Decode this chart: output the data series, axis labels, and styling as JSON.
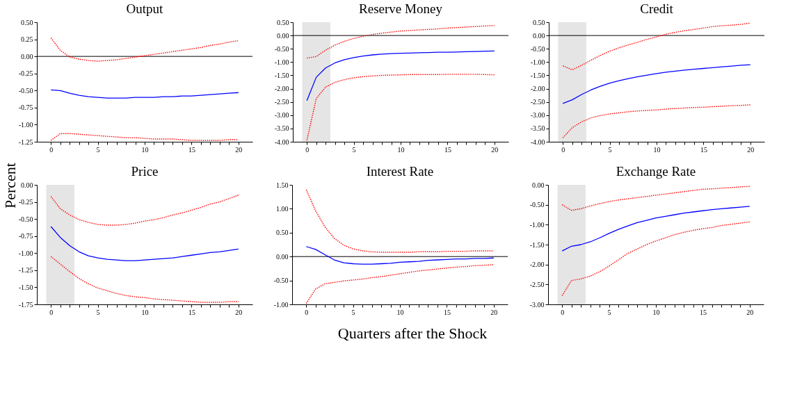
{
  "chart_data": [
    {
      "type": "line",
      "title": "Output",
      "ylabel": "Percent",
      "x": [
        0,
        1,
        2,
        3,
        4,
        5,
        6,
        7,
        8,
        9,
        10,
        11,
        12,
        13,
        14,
        15,
        16,
        17,
        18,
        19,
        20
      ],
      "xlim": [
        -1.5,
        21.5
      ],
      "xticks": [
        0,
        {
          "value": 1,
          "label": null
        },
        {
          "value": 2,
          "label": null
        },
        {
          "value": 3,
          "label": null
        },
        {
          "value": 4,
          "label": null
        },
        5,
        {
          "value": 6,
          "label": null
        },
        {
          "value": 7,
          "label": null
        },
        {
          "value": 8,
          "label": null
        },
        {
          "value": 9,
          "label": null
        },
        10,
        {
          "value": 11,
          "label": null
        },
        {
          "value": 12,
          "label": null
        },
        {
          "value": 13,
          "label": null
        },
        {
          "value": 14,
          "label": null
        },
        15,
        {
          "value": 16,
          "label": null
        },
        {
          "value": 17,
          "label": null
        },
        {
          "value": 18,
          "label": null
        },
        {
          "value": 19,
          "label": null
        },
        20
      ],
      "ylim": [
        -1.25,
        0.5
      ],
      "yticks": [
        {
          "value": -1.25,
          "label": "-1.25"
        },
        {
          "value": -1,
          "label": "-1.00"
        },
        {
          "value": -0.75,
          "label": "-0.75"
        },
        {
          "value": -0.5,
          "label": "-0.50"
        },
        {
          "value": -0.25,
          "label": "-0.25"
        },
        {
          "value": 0,
          "label": "0.00"
        },
        {
          "value": 0.25,
          "label": "0.25"
        },
        {
          "value": 0.5,
          "label": "0.50"
        }
      ],
      "grid": false,
      "marker": "none",
      "ref_lines": [
        {
          "axis": "y",
          "value": 0,
          "color": "#000000"
        }
      ],
      "series": [
        {
          "color": "#0000ff",
          "line_style": "solid",
          "values": [
            -0.49,
            -0.5,
            -0.54,
            -0.57,
            -0.59,
            -0.6,
            -0.61,
            -0.61,
            -0.61,
            -0.6,
            -0.6,
            -0.6,
            -0.59,
            -0.59,
            -0.58,
            -0.58,
            -0.57,
            -0.56,
            -0.55,
            -0.54,
            -0.53
          ]
        },
        {
          "color": "#ff0000",
          "line_style": "dotted",
          "values": [
            0.27,
            0.09,
            -0.01,
            -0.04,
            -0.06,
            -0.07,
            -0.06,
            -0.05,
            -0.03,
            -0.01,
            0.01,
            0.03,
            0.05,
            0.07,
            0.09,
            0.11,
            0.13,
            0.16,
            0.18,
            0.21,
            0.23
          ]
        },
        {
          "color": "#ff0000",
          "line_style": "dotted",
          "values": [
            -1.23,
            -1.13,
            -1.13,
            -1.14,
            -1.15,
            -1.16,
            -1.17,
            -1.18,
            -1.19,
            -1.19,
            -1.2,
            -1.21,
            -1.21,
            -1.21,
            -1.22,
            -1.23,
            -1.23,
            -1.23,
            -1.23,
            -1.22,
            -1.22
          ]
        }
      ]
    },
    {
      "type": "line",
      "title": "Reserve Money",
      "x": [
        0,
        1,
        2,
        3,
        4,
        5,
        6,
        7,
        8,
        9,
        10,
        11,
        12,
        13,
        14,
        15,
        16,
        17,
        18,
        19,
        20
      ],
      "xlim": [
        -1.5,
        21.5
      ],
      "xticks": [
        0,
        {
          "value": 1,
          "label": null
        },
        {
          "value": 2,
          "label": null
        },
        {
          "value": 3,
          "label": null
        },
        {
          "value": 4,
          "label": null
        },
        5,
        {
          "value": 6,
          "label": null
        },
        {
          "value": 7,
          "label": null
        },
        {
          "value": 8,
          "label": null
        },
        {
          "value": 9,
          "label": null
        },
        10,
        {
          "value": 11,
          "label": null
        },
        {
          "value": 12,
          "label": null
        },
        {
          "value": 13,
          "label": null
        },
        {
          "value": 14,
          "label": null
        },
        15,
        {
          "value": 16,
          "label": null
        },
        {
          "value": 17,
          "label": null
        },
        {
          "value": 18,
          "label": null
        },
        {
          "value": 19,
          "label": null
        },
        20
      ],
      "ylim": [
        -4,
        0.5
      ],
      "yticks": [
        {
          "value": -4,
          "label": "-4.00"
        },
        {
          "value": -3.5,
          "label": "-3.50"
        },
        {
          "value": -3,
          "label": "-3.00"
        },
        {
          "value": -2.5,
          "label": "-2.50"
        },
        {
          "value": -2,
          "label": "-2.00"
        },
        {
          "value": -1.5,
          "label": "-1.50"
        },
        {
          "value": -1,
          "label": "-1.00"
        },
        {
          "value": -0.5,
          "label": "-0.50"
        },
        {
          "value": 0,
          "label": "0.00"
        },
        {
          "value": 0.5,
          "label": "0.50"
        }
      ],
      "grid": false,
      "marker": "none",
      "bands": [
        {
          "axis": "x",
          "from": -0.5,
          "to": 2.5,
          "color": "#e5e5e5"
        }
      ],
      "ref_lines": [
        {
          "axis": "y",
          "value": 0,
          "color": "#000000"
        }
      ],
      "series": [
        {
          "color": "#0000ff",
          "line_style": "solid",
          "values": [
            -2.45,
            -1.57,
            -1.22,
            -1.03,
            -0.91,
            -0.83,
            -0.77,
            -0.73,
            -0.7,
            -0.68,
            -0.67,
            -0.66,
            -0.65,
            -0.64,
            -0.63,
            -0.63,
            -0.62,
            -0.61,
            -0.6,
            -0.59,
            -0.58
          ]
        },
        {
          "color": "#ff0000",
          "line_style": "dotted",
          "values": [
            -0.85,
            -0.79,
            -0.55,
            -0.36,
            -0.22,
            -0.11,
            -0.03,
            0.04,
            0.09,
            0.13,
            0.17,
            0.19,
            0.21,
            0.23,
            0.25,
            0.28,
            0.3,
            0.32,
            0.34,
            0.36,
            0.38
          ]
        },
        {
          "color": "#ff0000",
          "line_style": "dotted",
          "values": [
            -3.95,
            -2.37,
            -1.94,
            -1.76,
            -1.66,
            -1.59,
            -1.55,
            -1.52,
            -1.5,
            -1.49,
            -1.48,
            -1.47,
            -1.47,
            -1.47,
            -1.47,
            -1.46,
            -1.46,
            -1.46,
            -1.46,
            -1.47,
            -1.48
          ]
        }
      ]
    },
    {
      "type": "line",
      "title": "Credit",
      "x": [
        0,
        1,
        2,
        3,
        4,
        5,
        6,
        7,
        8,
        9,
        10,
        11,
        12,
        13,
        14,
        15,
        16,
        17,
        18,
        19,
        20
      ],
      "xlim": [
        -1.5,
        21.5
      ],
      "xticks": [
        0,
        {
          "value": 1,
          "label": null
        },
        {
          "value": 2,
          "label": null
        },
        {
          "value": 3,
          "label": null
        },
        {
          "value": 4,
          "label": null
        },
        5,
        {
          "value": 6,
          "label": null
        },
        {
          "value": 7,
          "label": null
        },
        {
          "value": 8,
          "label": null
        },
        {
          "value": 9,
          "label": null
        },
        10,
        {
          "value": 11,
          "label": null
        },
        {
          "value": 12,
          "label": null
        },
        {
          "value": 13,
          "label": null
        },
        {
          "value": 14,
          "label": null
        },
        15,
        {
          "value": 16,
          "label": null
        },
        {
          "value": 17,
          "label": null
        },
        {
          "value": 18,
          "label": null
        },
        {
          "value": 19,
          "label": null
        },
        20
      ],
      "ylim": [
        -4,
        0.5
      ],
      "yticks": [
        {
          "value": -4,
          "label": "-4.00"
        },
        {
          "value": -3.5,
          "label": "-3.50"
        },
        {
          "value": -3,
          "label": "-3.00"
        },
        {
          "value": -2.5,
          "label": "-2.50"
        },
        {
          "value": -2,
          "label": "-2.00"
        },
        {
          "value": -1.5,
          "label": "-1.50"
        },
        {
          "value": -1,
          "label": "-1.00"
        },
        {
          "value": -0.5,
          "label": "-0.50"
        },
        {
          "value": 0,
          "label": "0.00"
        },
        {
          "value": 0.5,
          "label": "0.50"
        }
      ],
      "grid": false,
      "marker": "none",
      "bands": [
        {
          "axis": "x",
          "from": -0.5,
          "to": 2.5,
          "color": "#e5e5e5"
        }
      ],
      "ref_lines": [
        {
          "axis": "y",
          "value": 0,
          "color": "#000000"
        }
      ],
      "series": [
        {
          "color": "#0000ff",
          "line_style": "solid",
          "values": [
            -2.56,
            -2.42,
            -2.22,
            -2.05,
            -1.91,
            -1.79,
            -1.7,
            -1.62,
            -1.55,
            -1.49,
            -1.43,
            -1.38,
            -1.34,
            -1.3,
            -1.27,
            -1.24,
            -1.21,
            -1.18,
            -1.15,
            -1.12,
            -1.1
          ]
        },
        {
          "color": "#ff0000",
          "line_style": "dotted",
          "values": [
            -1.14,
            -1.29,
            -1.12,
            -0.93,
            -0.75,
            -0.59,
            -0.46,
            -0.35,
            -0.25,
            -0.14,
            -0.05,
            0.05,
            0.12,
            0.18,
            0.23,
            0.28,
            0.34,
            0.37,
            0.39,
            0.42,
            0.47
          ]
        },
        {
          "color": "#ff0000",
          "line_style": "dotted",
          "values": [
            -3.85,
            -3.47,
            -3.25,
            -3.1,
            -3.01,
            -2.95,
            -2.91,
            -2.87,
            -2.84,
            -2.82,
            -2.8,
            -2.77,
            -2.75,
            -2.73,
            -2.71,
            -2.7,
            -2.68,
            -2.66,
            -2.64,
            -2.63,
            -2.61
          ]
        }
      ]
    },
    {
      "type": "line",
      "title": "Price",
      "x": [
        0,
        1,
        2,
        3,
        4,
        5,
        6,
        7,
        8,
        9,
        10,
        11,
        12,
        13,
        14,
        15,
        16,
        17,
        18,
        19,
        20
      ],
      "xlim": [
        -1.5,
        21.5
      ],
      "xticks": [
        0,
        {
          "value": 1,
          "label": null
        },
        {
          "value": 2,
          "label": null
        },
        {
          "value": 3,
          "label": null
        },
        {
          "value": 4,
          "label": null
        },
        5,
        {
          "value": 6,
          "label": null
        },
        {
          "value": 7,
          "label": null
        },
        {
          "value": 8,
          "label": null
        },
        {
          "value": 9,
          "label": null
        },
        10,
        {
          "value": 11,
          "label": null
        },
        {
          "value": 12,
          "label": null
        },
        {
          "value": 13,
          "label": null
        },
        {
          "value": 14,
          "label": null
        },
        15,
        {
          "value": 16,
          "label": null
        },
        {
          "value": 17,
          "label": null
        },
        {
          "value": 18,
          "label": null
        },
        {
          "value": 19,
          "label": null
        },
        20
      ],
      "ylim": [
        -1.75,
        0
      ],
      "yticks": [
        {
          "value": -1.75,
          "label": "-1.75"
        },
        {
          "value": -1.5,
          "label": "-1.50"
        },
        {
          "value": -1.25,
          "label": "-1.25"
        },
        {
          "value": -1,
          "label": "-1.00"
        },
        {
          "value": -0.75,
          "label": "-0.75"
        },
        {
          "value": -0.5,
          "label": "-0.50"
        },
        {
          "value": -0.25,
          "label": "-0.25"
        },
        {
          "value": 0,
          "label": "0.00"
        }
      ],
      "grid": false,
      "marker": "none",
      "bands": [
        {
          "axis": "x",
          "from": -0.5,
          "to": 2.5,
          "color": "#e5e5e5"
        }
      ],
      "series": [
        {
          "color": "#0000ff",
          "line_style": "solid",
          "values": [
            -0.61,
            -0.77,
            -0.89,
            -0.98,
            -1.04,
            -1.07,
            -1.09,
            -1.1,
            -1.11,
            -1.11,
            -1.1,
            -1.09,
            -1.08,
            -1.07,
            -1.05,
            -1.03,
            -1.01,
            -0.99,
            -0.98,
            -0.96,
            -0.94
          ]
        },
        {
          "color": "#ff0000",
          "line_style": "dotted",
          "values": [
            -0.17,
            -0.35,
            -0.44,
            -0.51,
            -0.55,
            -0.58,
            -0.59,
            -0.59,
            -0.58,
            -0.56,
            -0.53,
            -0.51,
            -0.48,
            -0.44,
            -0.41,
            -0.37,
            -0.33,
            -0.28,
            -0.25,
            -0.2,
            -0.15
          ]
        },
        {
          "color": "#ff0000",
          "line_style": "dotted",
          "values": [
            -1.05,
            -1.16,
            -1.27,
            -1.37,
            -1.45,
            -1.51,
            -1.55,
            -1.59,
            -1.62,
            -1.64,
            -1.65,
            -1.67,
            -1.68,
            -1.69,
            -1.7,
            -1.71,
            -1.72,
            -1.72,
            -1.72,
            -1.71,
            -1.71
          ]
        }
      ]
    },
    {
      "type": "line",
      "title": "Interest Rate",
      "xlabel": "Quarters after the Shock",
      "x": [
        0,
        1,
        2,
        3,
        4,
        5,
        6,
        7,
        8,
        9,
        10,
        11,
        12,
        13,
        14,
        15,
        16,
        17,
        18,
        19,
        20
      ],
      "xlim": [
        -1.5,
        21.5
      ],
      "xticks": [
        0,
        {
          "value": 1,
          "label": null
        },
        {
          "value": 2,
          "label": null
        },
        {
          "value": 3,
          "label": null
        },
        {
          "value": 4,
          "label": null
        },
        5,
        {
          "value": 6,
          "label": null
        },
        {
          "value": 7,
          "label": null
        },
        {
          "value": 8,
          "label": null
        },
        {
          "value": 9,
          "label": null
        },
        10,
        {
          "value": 11,
          "label": null
        },
        {
          "value": 12,
          "label": null
        },
        {
          "value": 13,
          "label": null
        },
        {
          "value": 14,
          "label": null
        },
        15,
        {
          "value": 16,
          "label": null
        },
        {
          "value": 17,
          "label": null
        },
        {
          "value": 18,
          "label": null
        },
        {
          "value": 19,
          "label": null
        },
        20
      ],
      "ylim": [
        -1,
        1.5
      ],
      "yticks": [
        {
          "value": -1,
          "label": "-1.00"
        },
        {
          "value": -0.5,
          "label": "-0.50"
        },
        {
          "value": 0,
          "label": "0.00"
        },
        {
          "value": 0.5,
          "label": "0.50"
        },
        {
          "value": 1,
          "label": "1.00"
        },
        {
          "value": 1.5,
          "label": "1.50"
        }
      ],
      "grid": false,
      "marker": "none",
      "ref_lines": [
        {
          "axis": "y",
          "value": 0,
          "color": "#000000"
        }
      ],
      "series": [
        {
          "color": "#0000ff",
          "line_style": "solid",
          "values": [
            0.21,
            0.15,
            0.04,
            -0.07,
            -0.13,
            -0.15,
            -0.16,
            -0.16,
            -0.15,
            -0.14,
            -0.12,
            -0.11,
            -0.1,
            -0.08,
            -0.07,
            -0.06,
            -0.05,
            -0.05,
            -0.04,
            -0.04,
            -0.03
          ]
        },
        {
          "color": "#ff0000",
          "line_style": "dotted",
          "values": [
            1.4,
            0.96,
            0.62,
            0.38,
            0.24,
            0.16,
            0.12,
            0.1,
            0.09,
            0.09,
            0.09,
            0.09,
            0.1,
            0.1,
            0.1,
            0.11,
            0.11,
            0.11,
            0.12,
            0.12,
            0.12
          ]
        },
        {
          "color": "#ff0000",
          "line_style": "dotted",
          "values": [
            -0.98,
            -0.68,
            -0.57,
            -0.54,
            -0.51,
            -0.49,
            -0.47,
            -0.44,
            -0.42,
            -0.39,
            -0.36,
            -0.33,
            -0.3,
            -0.28,
            -0.26,
            -0.24,
            -0.22,
            -0.21,
            -0.19,
            -0.18,
            -0.17
          ]
        }
      ]
    },
    {
      "type": "line",
      "title": "Exchange Rate",
      "x": [
        0,
        1,
        2,
        3,
        4,
        5,
        6,
        7,
        8,
        9,
        10,
        11,
        12,
        13,
        14,
        15,
        16,
        17,
        18,
        19,
        20
      ],
      "xlim": [
        -1.5,
        21.5
      ],
      "xticks": [
        0,
        {
          "value": 1,
          "label": null
        },
        {
          "value": 2,
          "label": null
        },
        {
          "value": 3,
          "label": null
        },
        {
          "value": 4,
          "label": null
        },
        5,
        {
          "value": 6,
          "label": null
        },
        {
          "value": 7,
          "label": null
        },
        {
          "value": 8,
          "label": null
        },
        {
          "value": 9,
          "label": null
        },
        10,
        {
          "value": 11,
          "label": null
        },
        {
          "value": 12,
          "label": null
        },
        {
          "value": 13,
          "label": null
        },
        {
          "value": 14,
          "label": null
        },
        15,
        {
          "value": 16,
          "label": null
        },
        {
          "value": 17,
          "label": null
        },
        {
          "value": 18,
          "label": null
        },
        {
          "value": 19,
          "label": null
        },
        20
      ],
      "ylim": [
        -3,
        0
      ],
      "yticks": [
        {
          "value": -3,
          "label": "-3.00"
        },
        {
          "value": -2.5,
          "label": "-2.50"
        },
        {
          "value": -2,
          "label": "-2.00"
        },
        {
          "value": -1.5,
          "label": "-1.50"
        },
        {
          "value": -1,
          "label": "-1.00"
        },
        {
          "value": -0.5,
          "label": "-0.50"
        },
        {
          "value": 0,
          "label": "0.00"
        }
      ],
      "grid": false,
      "marker": "none",
      "bands": [
        {
          "axis": "x",
          "from": -0.5,
          "to": 2.5,
          "color": "#e5e5e5"
        }
      ],
      "series": [
        {
          "color": "#0000ff",
          "line_style": "solid",
          "values": [
            -1.66,
            -1.54,
            -1.5,
            -1.43,
            -1.33,
            -1.22,
            -1.12,
            -1.03,
            -0.95,
            -0.89,
            -0.83,
            -0.79,
            -0.75,
            -0.71,
            -0.68,
            -0.65,
            -0.62,
            -0.6,
            -0.58,
            -0.56,
            -0.54
          ]
        },
        {
          "color": "#ff0000",
          "line_style": "dotted",
          "values": [
            -0.5,
            -0.64,
            -0.6,
            -0.53,
            -0.47,
            -0.42,
            -0.38,
            -0.35,
            -0.32,
            -0.29,
            -0.26,
            -0.23,
            -0.2,
            -0.17,
            -0.14,
            -0.11,
            -0.1,
            -0.08,
            -0.07,
            -0.05,
            -0.04
          ]
        },
        {
          "color": "#ff0000",
          "line_style": "dotted",
          "values": [
            -2.78,
            -2.4,
            -2.36,
            -2.29,
            -2.18,
            -2.04,
            -1.88,
            -1.72,
            -1.61,
            -1.5,
            -1.41,
            -1.33,
            -1.25,
            -1.19,
            -1.14,
            -1.1,
            -1.07,
            -1.02,
            -0.99,
            -0.96,
            -0.93
          ]
        }
      ]
    }
  ]
}
